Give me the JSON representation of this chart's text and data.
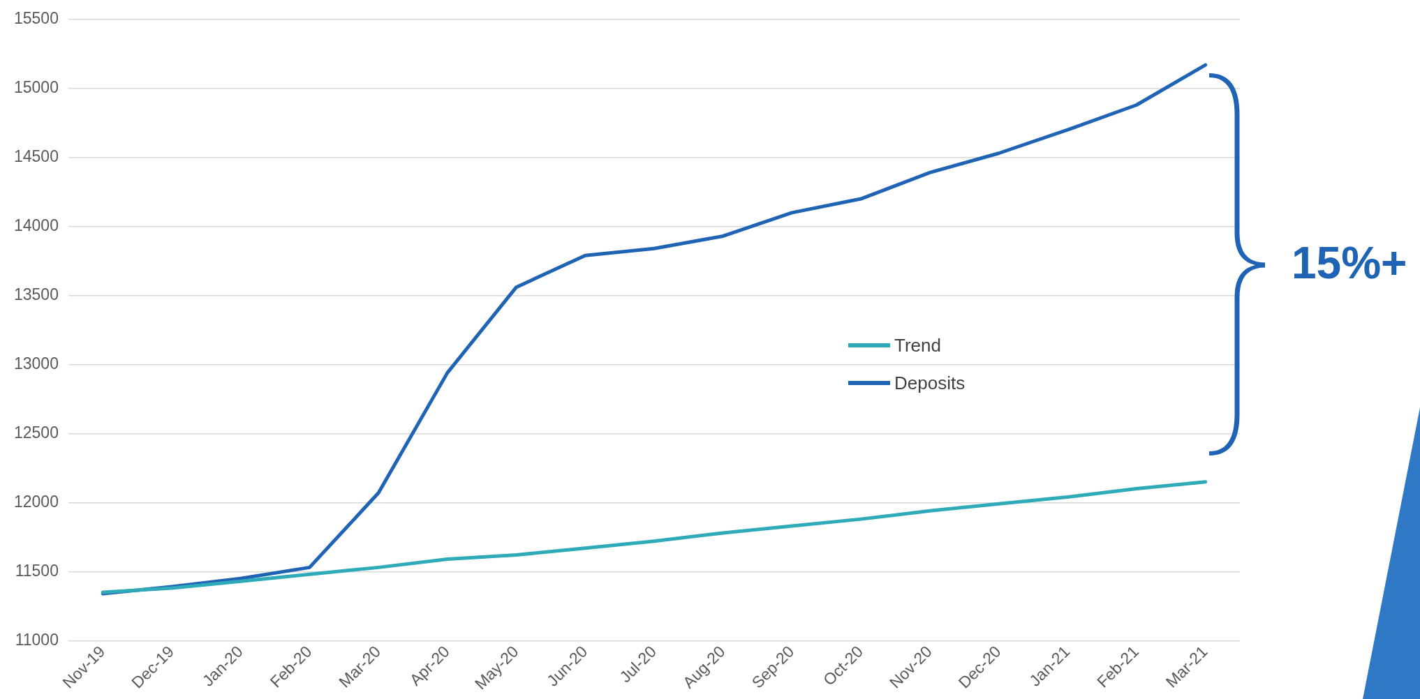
{
  "chart_data": {
    "type": "line",
    "categories": [
      "Nov-19",
      "Dec-19",
      "Jan-20",
      "Feb-20",
      "Mar-20",
      "Apr-20",
      "May-20",
      "Jun-20",
      "Jul-20",
      "Aug-20",
      "Sep-20",
      "Oct-20",
      "Nov-20",
      "Dec-20",
      "Jan-21",
      "Feb-21",
      "Mar-21"
    ],
    "series": [
      {
        "name": "Trend",
        "color": "#2eaab9",
        "values": [
          11350,
          11380,
          11430,
          11480,
          11530,
          11590,
          11620,
          11670,
          11720,
          11780,
          11830,
          11880,
          11940,
          11990,
          12040,
          12100,
          12150
        ]
      },
      {
        "name": "Deposits",
        "color": "#1f63b4",
        "values": [
          11340,
          11390,
          11450,
          11530,
          12070,
          12940,
          13560,
          13790,
          13840,
          13930,
          14100,
          14200,
          14390,
          14530,
          14700,
          14880,
          15170
        ]
      }
    ],
    "ylim": [
      11000,
      15500
    ],
    "yticks": [
      11000,
      11500,
      12000,
      12500,
      13000,
      13500,
      14000,
      14500,
      15000,
      15500
    ],
    "grid": "y",
    "legend": "center right",
    "marker": "none",
    "annotations": [
      "15%+"
    ]
  }
}
